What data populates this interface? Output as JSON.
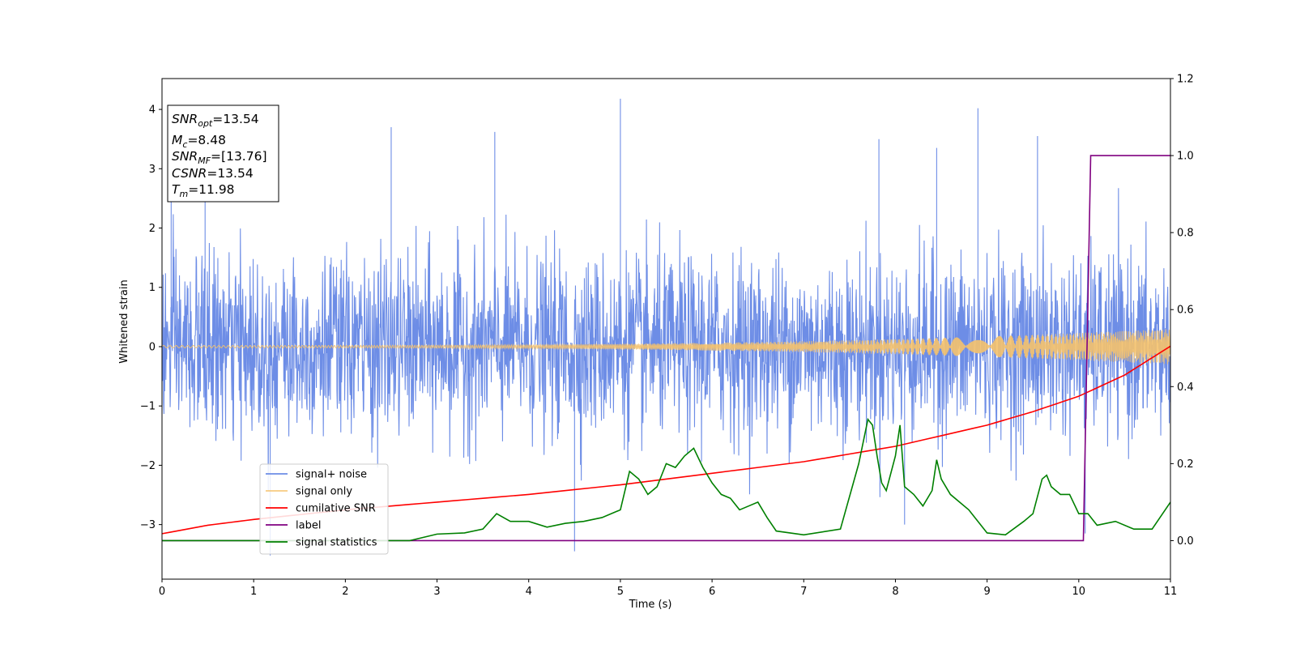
{
  "chart_data": {
    "type": "line",
    "xlabel": "Time (s)",
    "ylabel": "Whitened strain",
    "xlim": [
      0,
      11
    ],
    "ylim": [
      -3.92,
      4.52
    ],
    "y2lim": [
      -0.1,
      1.2
    ],
    "x_ticks": [
      "0",
      "1",
      "2",
      "3",
      "4",
      "5",
      "6",
      "7",
      "8",
      "9",
      "10",
      "11"
    ],
    "y_ticks": [
      "−3",
      "−2",
      "−1",
      "0",
      "1",
      "2",
      "3",
      "4"
    ],
    "y2_ticks": [
      "0.0",
      "0.2",
      "0.4",
      "0.6",
      "0.8",
      "1.0",
      "1.2"
    ],
    "annotation": [
      {
        "base": "SNR",
        "sub": "opt",
        "rest": "=13.54"
      },
      {
        "base": "M",
        "sub": "c",
        "rest": "=8.48"
      },
      {
        "base": "SNR",
        "sub": "MF",
        "rest": "=[13.76]"
      },
      {
        "base": "CSNR",
        "sub": "",
        "rest": "=13.54"
      },
      {
        "base": "T",
        "sub": "m",
        "rest": "=11.98"
      }
    ],
    "legend": {
      "location": "lower-left",
      "entries": [
        "signal+ noise",
        "signal only",
        "cumilative SNR",
        "label",
        "signal statistics"
      ]
    },
    "series": [
      {
        "name": "signal+ noise",
        "axis": "left",
        "color": "#6d8de6",
        "kind": "noise",
        "approx_range": [
          -3.5,
          4.18
        ],
        "spikes": [
          [
            0.1,
            2.6
          ],
          [
            0.47,
            2.75
          ],
          [
            1.18,
            -3.52
          ],
          [
            2.5,
            3.7
          ],
          [
            3.63,
            3.62
          ],
          [
            4.5,
            -3.45
          ],
          [
            5.0,
            4.18
          ],
          [
            7.82,
            3.5
          ],
          [
            8.1,
            -3.0
          ],
          [
            8.45,
            3.35
          ],
          [
            8.9,
            4.02
          ],
          [
            9.55,
            3.55
          ],
          [
            10.07,
            -3.15
          ]
        ]
      },
      {
        "name": "signal only",
        "axis": "left",
        "color": "#f5c26b",
        "kind": "chirp",
        "amplitude_start": 0.02,
        "amplitude_end": 0.3
      },
      {
        "name": "cumilative SNR",
        "axis": "right",
        "color": "#ff0000",
        "x": [
          0,
          0.5,
          1,
          2,
          3,
          4,
          5,
          6,
          7,
          8,
          9,
          9.5,
          10,
          10.5,
          11
        ],
        "y": [
          0.018,
          0.04,
          0.055,
          0.08,
          0.1,
          0.12,
          0.145,
          0.175,
          0.205,
          0.245,
          0.3,
          0.335,
          0.375,
          0.43,
          0.505
        ]
      },
      {
        "name": "label",
        "axis": "right",
        "color": "#800080",
        "x": [
          0,
          10.05,
          10.13,
          11
        ],
        "y": [
          0,
          0,
          1,
          1
        ]
      },
      {
        "name": "signal statistics",
        "axis": "right",
        "color": "#008000",
        "x": [
          0,
          2.7,
          3.0,
          3.3,
          3.5,
          3.65,
          3.8,
          4.0,
          4.2,
          4.4,
          4.6,
          4.8,
          5.0,
          5.1,
          5.2,
          5.3,
          5.4,
          5.5,
          5.6,
          5.7,
          5.8,
          5.9,
          6.0,
          6.1,
          6.2,
          6.3,
          6.4,
          6.5,
          6.6,
          6.7,
          7.0,
          7.4,
          7.6,
          7.7,
          7.75,
          7.8,
          7.85,
          7.9,
          8.0,
          8.05,
          8.1,
          8.2,
          8.3,
          8.4,
          8.45,
          8.5,
          8.6,
          8.8,
          9.0,
          9.2,
          9.4,
          9.5,
          9.6,
          9.65,
          9.7,
          9.8,
          9.9,
          10.0,
          10.1,
          10.2,
          10.4,
          10.6,
          10.8,
          11.0
        ],
        "y": [
          0.0,
          0.0,
          0.017,
          0.02,
          0.03,
          0.07,
          0.05,
          0.05,
          0.035,
          0.045,
          0.05,
          0.06,
          0.08,
          0.18,
          0.16,
          0.12,
          0.14,
          0.2,
          0.19,
          0.22,
          0.24,
          0.19,
          0.15,
          0.12,
          0.11,
          0.08,
          0.09,
          0.1,
          0.06,
          0.025,
          0.015,
          0.03,
          0.2,
          0.315,
          0.3,
          0.22,
          0.15,
          0.13,
          0.22,
          0.3,
          0.14,
          0.12,
          0.09,
          0.13,
          0.21,
          0.16,
          0.12,
          0.08,
          0.02,
          0.015,
          0.05,
          0.07,
          0.16,
          0.17,
          0.14,
          0.12,
          0.12,
          0.07,
          0.07,
          0.04,
          0.05,
          0.03,
          0.03,
          0.1
        ]
      }
    ]
  }
}
